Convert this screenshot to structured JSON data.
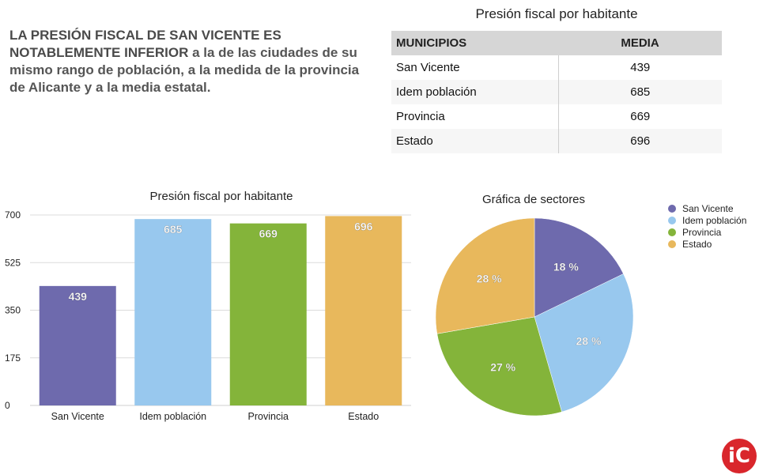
{
  "headline": {
    "strong": "LA PRESIÓN FISCAL DE SAN VICENTE ES NOTABLEMENTE INFERIOR",
    "rest": " a la de las ciudades de su mismo rango de población, a la medida de la provincia de Alicante y a la media estatal."
  },
  "table": {
    "title": "Presión fiscal por habitante",
    "headers": [
      "MUNICIPIOS",
      "MEDIA"
    ],
    "rows": [
      {
        "label": "San Vicente",
        "value": "439"
      },
      {
        "label": "Idem población",
        "value": "685"
      },
      {
        "label": "Provincia",
        "value": "669"
      },
      {
        "label": "Estado",
        "value": "696"
      }
    ]
  },
  "logo": {
    "text": "iC"
  },
  "chart_data": [
    {
      "type": "bar",
      "title": "Presión fiscal por habitante",
      "categories": [
        "San Vicente",
        "Idem población",
        "Provincia",
        "Estado"
      ],
      "values": [
        439,
        685,
        669,
        696
      ],
      "colors": [
        "#6e6aad",
        "#98c8ee",
        "#84b43a",
        "#e8b85c"
      ],
      "ylim": [
        0,
        700
      ],
      "yticks": [
        0,
        175,
        350,
        525,
        700
      ],
      "grid": true
    },
    {
      "type": "pie",
      "title": "Gráfica de sectores",
      "labels": [
        "San Vicente",
        "Idem población",
        "Provincia",
        "Estado"
      ],
      "values": [
        18,
        28,
        27,
        28
      ],
      "display_labels": [
        "18 %",
        "28 %",
        "27 %",
        "28 %"
      ],
      "colors": [
        "#6e6aad",
        "#98c8ee",
        "#84b43a",
        "#e8b85c"
      ],
      "legend_position": "right"
    }
  ]
}
